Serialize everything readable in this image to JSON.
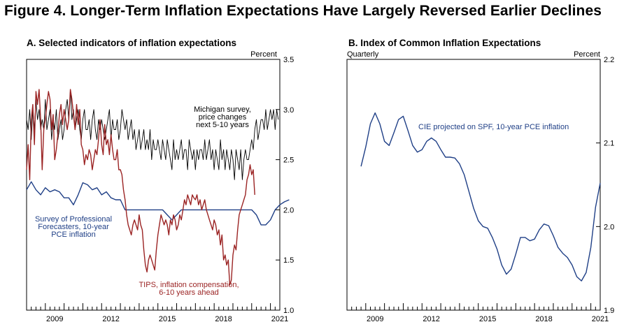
{
  "figure_title": "Figure 4. Longer-Term Inflation Expectations Have Largely Reversed Earlier Declines",
  "colors": {
    "black": "#000000",
    "blue": "#1f3f86",
    "red": "#9b2424"
  },
  "chart_data": [
    {
      "type": "line",
      "title": "A. Selected indicators of inflation expectations",
      "units": "Percent",
      "ylim": [
        1.0,
        3.5
      ],
      "y_ticks": [
        "1.0",
        "1.5",
        "2.0",
        "2.5",
        "3.0",
        "3.5"
      ],
      "x_range": [
        2008.0,
        2021.5
      ],
      "x_tick_labels": [
        "2009",
        "2012",
        "2015",
        "2018",
        "2021"
      ],
      "grid": false,
      "series": [
        {
          "name": "Michigan survey, price changes next 5-10 years",
          "label_lines": [
            "Michigan survey,",
            "price changes",
            "next 5-10 years"
          ],
          "color": "#000000",
          "frequency": "monthly",
          "x_start": 2008.0,
          "values": [
            2.9,
            2.8,
            3.0,
            2.7,
            3.0,
            2.8,
            3.1,
            2.9,
            3.0,
            2.8,
            2.9,
            2.8,
            3.1,
            2.8,
            2.9,
            3.0,
            2.7,
            2.9,
            2.8,
            3.0,
            2.7,
            2.8,
            2.9,
            2.7,
            2.8,
            3.0,
            3.1,
            2.9,
            3.2,
            2.9,
            3.0,
            2.8,
            2.9,
            3.0,
            2.8,
            2.7,
            2.9,
            3.0,
            2.8,
            2.8,
            2.9,
            2.7,
            2.9,
            3.0,
            2.8,
            2.7,
            2.9,
            2.8,
            2.9,
            2.8,
            2.7,
            2.8,
            2.9,
            3.0,
            2.7,
            2.9,
            2.8,
            2.8,
            2.9,
            2.7,
            2.8,
            3.0,
            2.9,
            2.8,
            2.9,
            2.7,
            2.8,
            2.9,
            2.7,
            2.8,
            2.6,
            2.7,
            2.8,
            2.6,
            2.7,
            2.8,
            2.6,
            2.7,
            2.6,
            2.8,
            2.5,
            2.7,
            2.6,
            2.6,
            2.7,
            2.6,
            2.5,
            2.7,
            2.6,
            2.5,
            2.7,
            2.6,
            2.5,
            2.4,
            2.7,
            2.5,
            2.6,
            2.5,
            2.6,
            2.7,
            2.5,
            2.6,
            2.6,
            2.4,
            2.7,
            2.6,
            2.5,
            2.6,
            2.4,
            2.6,
            2.5,
            2.6,
            2.6,
            2.5,
            2.7,
            2.5,
            2.6,
            2.7,
            2.5,
            2.6,
            2.4,
            2.6,
            2.5,
            2.4,
            2.7,
            2.5,
            2.6,
            2.4,
            2.6,
            2.5,
            2.4,
            2.6,
            2.5,
            2.3,
            2.6,
            2.5,
            2.4,
            2.6,
            2.3,
            2.5,
            2.6,
            2.5,
            2.5,
            2.6,
            2.7,
            2.6,
            2.8,
            2.9,
            2.7,
            2.8,
            2.9,
            2.9,
            2.8,
            3.0,
            2.8,
            2.9,
            3.0,
            2.9,
            3.0,
            2.8,
            3.0,
            2.9
          ]
        },
        {
          "name": "Survey of Professional Forecasters, 10-year PCE inflation",
          "label_lines": [
            "Survey of Professional",
            "Forecasters, 10-year",
            "PCE inflation"
          ],
          "color": "#1f3f86",
          "frequency": "quarterly",
          "x_start": 2008.0,
          "values": [
            2.2,
            2.28,
            2.2,
            2.15,
            2.22,
            2.18,
            2.2,
            2.18,
            2.12,
            2.12,
            2.05,
            2.15,
            2.27,
            2.25,
            2.2,
            2.22,
            2.15,
            2.18,
            2.12,
            2.1,
            2.1,
            2.0,
            2.0,
            2.0,
            2.0,
            2.0,
            2.0,
            2.0,
            2.0,
            2.0,
            1.95,
            1.9,
            1.95,
            2.0,
            2.0,
            2.0,
            2.0,
            2.0,
            2.0,
            2.0,
            2.0,
            2.0,
            2.0,
            2.0,
            2.0,
            2.0,
            2.0,
            2.0,
            2.0,
            1.95,
            1.85,
            1.85,
            1.9,
            2.0,
            2.05,
            2.08,
            2.1
          ]
        },
        {
          "name": "TIPS, inflation compensation, 6-10 years ahead",
          "label_lines": [
            "TIPS, inflation compensation,",
            "6-10 years ahead"
          ],
          "color": "#9b2424",
          "frequency": "monthly",
          "x_start": 2008.0,
          "values": [
            2.4,
            2.65,
            2.3,
            2.9,
            3.05,
            2.65,
            3.18,
            3.05,
            3.2,
            2.9,
            2.4,
            2.8,
            2.9,
            3.05,
            3.18,
            3.1,
            2.8,
            2.95,
            2.5,
            2.6,
            2.75,
            2.95,
            3.05,
            2.85,
            3.0,
            2.9,
            2.8,
            2.9,
            3.2,
            3.1,
            2.95,
            2.8,
            3.05,
            2.85,
            3.0,
            2.65,
            2.6,
            2.45,
            2.55,
            2.5,
            2.6,
            2.55,
            2.4,
            2.5,
            2.6,
            2.55,
            2.7,
            2.9,
            2.65,
            2.55,
            2.85,
            2.65,
            2.7,
            2.55,
            2.75,
            2.6,
            2.5,
            2.5,
            2.6,
            2.4,
            2.4,
            2.35,
            2.2,
            2.1,
            1.95,
            1.85,
            1.8,
            1.75,
            1.85,
            1.9,
            1.85,
            1.8,
            1.95,
            1.85,
            1.8,
            1.6,
            1.45,
            1.38,
            1.5,
            1.55,
            1.5,
            1.45,
            1.4,
            1.6,
            1.75,
            1.85,
            1.95,
            1.9,
            1.85,
            1.9,
            1.85,
            1.75,
            1.9,
            1.85,
            1.95,
            1.9,
            1.8,
            1.85,
            1.95,
            1.9,
            2.0,
            2.1,
            2.05,
            2.15,
            2.1,
            2.05,
            2.15,
            2.12,
            2.1,
            2.15,
            2.05,
            2.1,
            2.0,
            2.05,
            2.1,
            2.0,
            1.95,
            1.9,
            1.85,
            1.8,
            1.9,
            1.85,
            1.75,
            1.8,
            1.65,
            1.75,
            1.5,
            1.55,
            1.45,
            1.5,
            1.25,
            1.3,
            1.55,
            1.65,
            1.6,
            1.8,
            1.95,
            2.0,
            2.05,
            2.1,
            2.15,
            2.3,
            2.35,
            2.45,
            2.35,
            2.4,
            2.15
          ]
        }
      ]
    },
    {
      "type": "line",
      "title": "B. Index of Common Inflation Expectations",
      "units": "Percent",
      "frequency_label": "Quarterly",
      "ylim": [
        1.9,
        2.2
      ],
      "y_ticks": [
        "1.9",
        "2.0",
        "2.1",
        "2.2"
      ],
      "x_range": [
        2008.0,
        2021.5
      ],
      "x_tick_labels": [
        "2009",
        "2012",
        "2015",
        "2018",
        "2021"
      ],
      "grid": false,
      "series": [
        {
          "name": "CIE projected on SPF, 10-year PCE inflation",
          "label_lines": [
            "CIE projected on SPF, 10-year PCE inflation"
          ],
          "color": "#1f3f86",
          "frequency": "quarterly",
          "x_start": 2008.75,
          "values": [
            2.072,
            2.095,
            2.123,
            2.136,
            2.123,
            2.102,
            2.097,
            2.112,
            2.128,
            2.132,
            2.115,
            2.097,
            2.089,
            2.092,
            2.102,
            2.106,
            2.102,
            2.092,
            2.083,
            2.083,
            2.082,
            2.075,
            2.062,
            2.042,
            2.022,
            2.007,
            2.0,
            1.998,
            1.987,
            1.973,
            1.954,
            1.943,
            1.949,
            1.967,
            1.987,
            1.987,
            1.983,
            1.985,
            1.996,
            2.003,
            2.001,
            1.989,
            1.975,
            1.968,
            1.963,
            1.954,
            1.94,
            1.935,
            1.945,
            1.975,
            2.023,
            2.052
          ]
        }
      ]
    }
  ]
}
